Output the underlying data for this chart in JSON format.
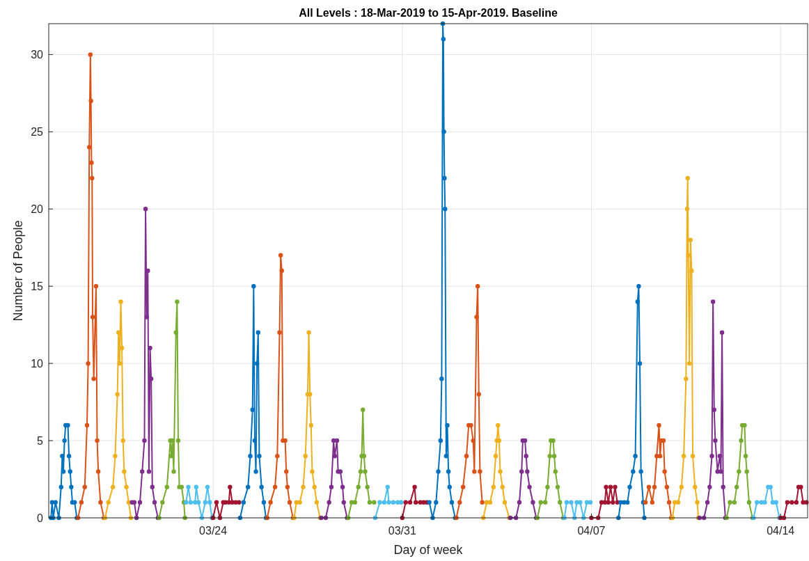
{
  "chart_data": {
    "type": "line",
    "title": "All Levels : 18-Mar-2019 to 15-Apr-2019. Baseline",
    "xlabel": "Day of week",
    "ylabel": "Number of People",
    "xlim": [
      "2019-03-17T22:00",
      "2019-04-15T00:00"
    ],
    "xticks": [
      {
        "value": "2019-03-24",
        "label": "03/24"
      },
      {
        "value": "2019-03-31",
        "label": "03/31"
      },
      {
        "value": "2019-04-07",
        "label": "04/07"
      },
      {
        "value": "2019-04-14",
        "label": "04/14"
      }
    ],
    "ylim": [
      0,
      32
    ],
    "yticks": [
      0,
      5,
      10,
      15,
      20,
      25,
      30
    ],
    "grid": true,
    "marker": "circle",
    "line_style": "solid",
    "series": [
      {
        "color": "#0072bd",
        "x": [
          "2019-03-18T00:00",
          "2019-03-18T01:00",
          "2019-03-18T02:00",
          "2019-03-18T04:00",
          "2019-03-18T07:00",
          "2019-03-18T09:00",
          "2019-03-18T10:00",
          "2019-03-18T11:00",
          "2019-03-18T12:00",
          "2019-03-18T13:00",
          "2019-03-18T15:00",
          "2019-03-18T16:00",
          "2019-03-18T17:00",
          "2019-03-18T18:00",
          "2019-03-18T19:00",
          "2019-03-18T21:00",
          "2019-03-18T23:00"
        ],
        "values": [
          0,
          1,
          0,
          1,
          0,
          2,
          4,
          3,
          5,
          6,
          6,
          4,
          3,
          2,
          1,
          1,
          0
        ]
      },
      {
        "color": "#d95319",
        "x": [
          "2019-03-19T00:00",
          "2019-03-19T03:00",
          "2019-03-19T06:00",
          "2019-03-19T08:00",
          "2019-03-19T09:00",
          "2019-03-19T10:00",
          "2019-03-19T11:00",
          "2019-03-19T11:30",
          "2019-03-19T12:00",
          "2019-03-19T12:30",
          "2019-03-19T13:00",
          "2019-03-19T14:00",
          "2019-03-19T16:00",
          "2019-03-19T17:00",
          "2019-03-19T18:00",
          "2019-03-19T20:00",
          "2019-03-19T23:00"
        ],
        "values": [
          0,
          1,
          2,
          6,
          10,
          24,
          30,
          27,
          23,
          22,
          13,
          9,
          15,
          5,
          3,
          1,
          0
        ]
      },
      {
        "color": "#edb120",
        "x": [
          "2019-03-20T00:00",
          "2019-03-20T03:00",
          "2019-03-20T07:00",
          "2019-03-20T09:00",
          "2019-03-20T11:00",
          "2019-03-20T12:00",
          "2019-03-20T13:00",
          "2019-03-20T14:00",
          "2019-03-20T15:00",
          "2019-03-20T16:00",
          "2019-03-20T17:00",
          "2019-03-20T19:00",
          "2019-03-20T21:00",
          "2019-03-20T23:00"
        ],
        "values": [
          0,
          1,
          2,
          4,
          8,
          12,
          10,
          14,
          11,
          5,
          3,
          2,
          1,
          0
        ]
      },
      {
        "color": "#7e2f8e",
        "x": [
          "2019-03-21T00:00",
          "2019-03-21T02:00",
          "2019-03-21T04:00",
          "2019-03-21T07:00",
          "2019-03-21T09:00",
          "2019-03-21T11:00",
          "2019-03-21T12:00",
          "2019-03-21T13:00",
          "2019-03-21T14:00",
          "2019-03-21T15:00",
          "2019-03-21T16:00",
          "2019-03-21T17:00",
          "2019-03-21T18:00",
          "2019-03-21T20:00",
          "2019-03-21T23:00"
        ],
        "values": [
          1,
          1,
          0,
          1,
          3,
          5,
          20,
          13,
          16,
          3,
          11,
          9,
          2,
          1,
          0
        ]
      },
      {
        "color": "#77ac30",
        "x": [
          "2019-03-22T00:00",
          "2019-03-22T03:00",
          "2019-03-22T07:00",
          "2019-03-22T10:00",
          "2019-03-22T11:00",
          "2019-03-22T12:00",
          "2019-03-22T13:00",
          "2019-03-22T15:00",
          "2019-03-22T16:00",
          "2019-03-22T17:00",
          "2019-03-22T18:00",
          "2019-03-22T20:00",
          "2019-03-22T22:00",
          "2019-03-22T23:00"
        ],
        "values": [
          0,
          1,
          2,
          5,
          4,
          5,
          3,
          12,
          14,
          5,
          2,
          2,
          1,
          0
        ]
      },
      {
        "color": "#4dbeee",
        "x": [
          "2019-03-23T00:00",
          "2019-03-23T02:00",
          "2019-03-23T04:00",
          "2019-03-23T08:00",
          "2019-03-23T09:00",
          "2019-03-23T11:00",
          "2019-03-23T14:00",
          "2019-03-23T17:00",
          "2019-03-23T19:00",
          "2019-03-23T21:00",
          "2019-03-23T23:00"
        ],
        "values": [
          1,
          2,
          1,
          1,
          2,
          1,
          0,
          1,
          2,
          1,
          0
        ]
      },
      {
        "color": "#a2142f",
        "x": [
          "2019-03-24T00:00",
          "2019-03-24T03:00",
          "2019-03-24T06:00",
          "2019-03-24T09:00",
          "2019-03-24T11:00",
          "2019-03-24T14:00",
          "2019-03-24T15:00",
          "2019-03-24T17:00",
          "2019-03-24T20:00",
          "2019-03-24T23:00"
        ],
        "values": [
          0,
          1,
          0,
          1,
          1,
          1,
          2,
          1,
          1,
          1
        ]
      },
      {
        "color": "#0072bd",
        "x": [
          "2019-03-25T00:00",
          "2019-03-25T03:00",
          "2019-03-25T07:00",
          "2019-03-25T09:00",
          "2019-03-25T11:00",
          "2019-03-25T12:00",
          "2019-03-25T13:00",
          "2019-03-25T14:00",
          "2019-03-25T15:00",
          "2019-03-25T16:00",
          "2019-03-25T17:00",
          "2019-03-25T19:00",
          "2019-03-25T21:00",
          "2019-03-25T23:00"
        ],
        "values": [
          0,
          1,
          2,
          4,
          7,
          15,
          5,
          3,
          10,
          12,
          4,
          2,
          1,
          0
        ]
      },
      {
        "color": "#d95319",
        "x": [
          "2019-03-26T00:00",
          "2019-03-26T03:00",
          "2019-03-26T07:00",
          "2019-03-26T09:00",
          "2019-03-26T11:00",
          "2019-03-26T12:00",
          "2019-03-26T13:00",
          "2019-03-26T14:00",
          "2019-03-26T16:00",
          "2019-03-26T17:00",
          "2019-03-26T18:00",
          "2019-03-26T20:00",
          "2019-03-26T23:00"
        ],
        "values": [
          0,
          1,
          2,
          4,
          12,
          17,
          16,
          5,
          5,
          3,
          2,
          1,
          0
        ]
      },
      {
        "color": "#edb120",
        "x": [
          "2019-03-27T00:00",
          "2019-03-27T02:00",
          "2019-03-27T05:00",
          "2019-03-27T08:00",
          "2019-03-27T10:00",
          "2019-03-27T12:00",
          "2019-03-27T13:00",
          "2019-03-27T14:00",
          "2019-03-27T15:00",
          "2019-03-27T16:00",
          "2019-03-27T18:00",
          "2019-03-27T20:00",
          "2019-03-27T23:00"
        ],
        "values": [
          0,
          1,
          1,
          2,
          4,
          8,
          12,
          8,
          6,
          3,
          2,
          1,
          0
        ]
      },
      {
        "color": "#7e2f8e",
        "x": [
          "2019-03-28T00:00",
          "2019-03-28T04:00",
          "2019-03-28T07:00",
          "2019-03-28T09:00",
          "2019-03-28T11:00",
          "2019-03-28T12:00",
          "2019-03-28T14:00",
          "2019-03-28T15:00",
          "2019-03-28T17:00",
          "2019-03-28T19:00",
          "2019-03-28T20:00",
          "2019-03-28T23:00"
        ],
        "values": [
          0,
          0,
          1,
          2,
          5,
          4,
          5,
          3,
          3,
          2,
          1,
          0
        ]
      },
      {
        "color": "#77ac30",
        "x": [
          "2019-03-29T00:00",
          "2019-03-29T03:00",
          "2019-03-29T06:00",
          "2019-03-29T09:00",
          "2019-03-29T11:00",
          "2019-03-29T12:00",
          "2019-03-29T13:00",
          "2019-03-29T14:00",
          "2019-03-29T15:00",
          "2019-03-29T17:00",
          "2019-03-29T19:00",
          "2019-03-29T23:00"
        ],
        "values": [
          0,
          1,
          1,
          2,
          3,
          4,
          7,
          4,
          3,
          2,
          1,
          1
        ]
      },
      {
        "color": "#4dbeee",
        "x": [
          "2019-03-30T00:00",
          "2019-03-30T04:00",
          "2019-03-30T08:00",
          "2019-03-30T11:00",
          "2019-03-30T12:00",
          "2019-03-30T16:00",
          "2019-03-30T20:00",
          "2019-03-30T23:00"
        ],
        "values": [
          0,
          1,
          1,
          2,
          1,
          1,
          1,
          1
        ]
      },
      {
        "color": "#a2142f",
        "x": [
          "2019-03-31T00:00",
          "2019-03-31T03:00",
          "2019-03-31T07:00",
          "2019-03-31T11:00",
          "2019-03-31T12:00",
          "2019-03-31T16:00",
          "2019-03-31T19:00",
          "2019-03-31T22:00"
        ],
        "values": [
          0,
          1,
          1,
          2,
          1,
          1,
          1,
          1
        ]
      },
      {
        "color": "#0072bd",
        "x": [
          "2019-04-01T00:00",
          "2019-04-01T03:00",
          "2019-04-01T06:00",
          "2019-04-01T08:00",
          "2019-04-01T10:00",
          "2019-04-01T11:00",
          "2019-04-01T12:00",
          "2019-04-01T12:30",
          "2019-04-01T13:00",
          "2019-04-01T13:30",
          "2019-04-01T14:00",
          "2019-04-01T15:00",
          "2019-04-01T16:00",
          "2019-04-01T17:00",
          "2019-04-01T18:00",
          "2019-04-01T20:00",
          "2019-04-01T23:00"
        ],
        "values": [
          1,
          0,
          1,
          3,
          5,
          9,
          32,
          31,
          25,
          22,
          20,
          4,
          6,
          3,
          2,
          1,
          0
        ]
      },
      {
        "color": "#d95319",
        "x": [
          "2019-04-02T00:00",
          "2019-04-02T03:00",
          "2019-04-02T06:00",
          "2019-04-02T09:00",
          "2019-04-02T11:00",
          "2019-04-02T13:00",
          "2019-04-02T15:00",
          "2019-04-02T16:00",
          "2019-04-02T18:00",
          "2019-04-02T19:00",
          "2019-04-02T20:00",
          "2019-04-02T21:00",
          "2019-04-02T23:00"
        ],
        "values": [
          0,
          1,
          2,
          4,
          6,
          6,
          5,
          3,
          13,
          15,
          8,
          3,
          1
        ]
      },
      {
        "color": "#edb120",
        "x": [
          "2019-04-03T00:00",
          "2019-04-03T03:00",
          "2019-04-03T06:00",
          "2019-04-03T09:00",
          "2019-04-03T11:00",
          "2019-04-03T12:00",
          "2019-04-03T13:00",
          "2019-04-03T14:00",
          "2019-04-03T15:00",
          "2019-04-03T17:00",
          "2019-04-03T19:00",
          "2019-04-03T23:00"
        ],
        "values": [
          0,
          1,
          1,
          2,
          4,
          5,
          6,
          5,
          3,
          2,
          1,
          0
        ]
      },
      {
        "color": "#7e2f8e",
        "x": [
          "2019-04-04T00:00",
          "2019-04-04T05:00",
          "2019-04-04T08:00",
          "2019-04-04T10:00",
          "2019-04-04T11:00",
          "2019-04-04T13:00",
          "2019-04-04T14:00",
          "2019-04-04T15:00",
          "2019-04-04T17:00",
          "2019-04-04T20:00",
          "2019-04-04T23:00"
        ],
        "values": [
          0,
          0,
          1,
          3,
          5,
          5,
          4,
          3,
          2,
          1,
          0
        ]
      },
      {
        "color": "#77ac30",
        "x": [
          "2019-04-05T00:00",
          "2019-04-05T03:00",
          "2019-04-05T07:00",
          "2019-04-05T09:00",
          "2019-04-05T11:00",
          "2019-04-05T12:00",
          "2019-04-05T14:00",
          "2019-04-05T15:00",
          "2019-04-05T16:00",
          "2019-04-05T18:00",
          "2019-04-05T20:00",
          "2019-04-05T23:00"
        ],
        "values": [
          0,
          1,
          1,
          2,
          4,
          5,
          5,
          4,
          3,
          2,
          1,
          0
        ]
      },
      {
        "color": "#4dbeee",
        "x": [
          "2019-04-06T00:00",
          "2019-04-06T02:00",
          "2019-04-06T06:00",
          "2019-04-06T09:00",
          "2019-04-06T11:00",
          "2019-04-06T14:00",
          "2019-04-06T17:00",
          "2019-04-06T20:00",
          "2019-04-06T23:00"
        ],
        "values": [
          0,
          1,
          1,
          0,
          1,
          1,
          0,
          1,
          1
        ]
      },
      {
        "color": "#a2142f",
        "x": [
          "2019-04-07T00:00",
          "2019-04-07T06:00",
          "2019-04-07T09:00",
          "2019-04-07T12:00",
          "2019-04-07T13:00",
          "2019-04-07T15:00",
          "2019-04-07T17:00",
          "2019-04-07T19:00",
          "2019-04-07T21:00",
          "2019-04-07T23:00"
        ],
        "values": [
          0,
          0,
          1,
          1,
          2,
          1,
          2,
          1,
          2,
          1
        ]
      },
      {
        "color": "#0072bd",
        "x": [
          "2019-04-08T00:00",
          "2019-04-08T02:00",
          "2019-04-08T05:00",
          "2019-04-08T08:00",
          "2019-04-08T10:00",
          "2019-04-08T13:00",
          "2019-04-08T15:00",
          "2019-04-08T17:00",
          "2019-04-08T18:00",
          "2019-04-08T19:00",
          "2019-04-08T20:00",
          "2019-04-08T22:00",
          "2019-04-08T23:00"
        ],
        "values": [
          0,
          1,
          1,
          1,
          2,
          3,
          4,
          14,
          15,
          10,
          3,
          1,
          0
        ]
      },
      {
        "color": "#d95319",
        "x": [
          "2019-04-09T00:00",
          "2019-04-09T03:00",
          "2019-04-09T06:00",
          "2019-04-09T08:00",
          "2019-04-09T10:00",
          "2019-04-09T12:00",
          "2019-04-09T13:00",
          "2019-04-09T14:00",
          "2019-04-09T16:00",
          "2019-04-09T17:00",
          "2019-04-09T19:00",
          "2019-04-09T21:00",
          "2019-04-09T23:00"
        ],
        "values": [
          1,
          2,
          1,
          2,
          4,
          6,
          4,
          5,
          5,
          3,
          2,
          1,
          0
        ]
      },
      {
        "color": "#edb120",
        "x": [
          "2019-04-10T00:00",
          "2019-04-10T02:00",
          "2019-04-10T05:00",
          "2019-04-10T08:00",
          "2019-04-10T10:00",
          "2019-04-10T12:00",
          "2019-04-10T13:00",
          "2019-04-10T13:30",
          "2019-04-10T14:00",
          "2019-04-10T15:00",
          "2019-04-10T16:00",
          "2019-04-10T17:00",
          "2019-04-10T18:00",
          "2019-04-10T20:00",
          "2019-04-10T22:00",
          "2019-04-10T23:00"
        ],
        "values": [
          0,
          1,
          1,
          2,
          4,
          9,
          20,
          22,
          17,
          10,
          18,
          16,
          4,
          2,
          1,
          0
        ]
      },
      {
        "color": "#7e2f8e",
        "x": [
          "2019-04-11T00:00",
          "2019-04-11T04:00",
          "2019-04-11T07:00",
          "2019-04-11T09:00",
          "2019-04-11T11:00",
          "2019-04-11T12:00",
          "2019-04-11T13:00",
          "2019-04-11T14:00",
          "2019-04-11T16:00",
          "2019-04-11T18:00",
          "2019-04-11T19:00",
          "2019-04-11T20:00",
          "2019-04-11T21:00",
          "2019-04-11T23:00"
        ],
        "values": [
          0,
          0,
          1,
          2,
          4,
          14,
          7,
          5,
          3,
          4,
          3,
          12,
          2,
          0
        ]
      },
      {
        "color": "#77ac30",
        "x": [
          "2019-04-12T00:00",
          "2019-04-12T03:00",
          "2019-04-12T07:00",
          "2019-04-12T09:00",
          "2019-04-12T11:00",
          "2019-04-12T13:00",
          "2019-04-12T14:00",
          "2019-04-12T16:00",
          "2019-04-12T17:00",
          "2019-04-12T18:00",
          "2019-04-12T20:00",
          "2019-04-12T23:00"
        ],
        "values": [
          0,
          1,
          1,
          2,
          3,
          5,
          6,
          6,
          4,
          3,
          1,
          0
        ]
      },
      {
        "color": "#4dbeee",
        "x": [
          "2019-04-13T00:00",
          "2019-04-13T03:00",
          "2019-04-13T07:00",
          "2019-04-13T10:00",
          "2019-04-13T13:00",
          "2019-04-13T15:00",
          "2019-04-13T17:00",
          "2019-04-13T20:00",
          "2019-04-13T23:00"
        ],
        "values": [
          0,
          1,
          1,
          1,
          2,
          2,
          1,
          1,
          0
        ]
      },
      {
        "color": "#a2142f",
        "x": [
          "2019-04-14T00:00",
          "2019-04-14T03:00",
          "2019-04-14T06:00",
          "2019-04-14T10:00",
          "2019-04-14T14:00",
          "2019-04-14T16:00",
          "2019-04-14T18:00",
          "2019-04-14T20:00",
          "2019-04-14T23:00"
        ],
        "values": [
          0,
          0,
          1,
          1,
          1,
          2,
          2,
          1,
          1
        ]
      }
    ]
  }
}
